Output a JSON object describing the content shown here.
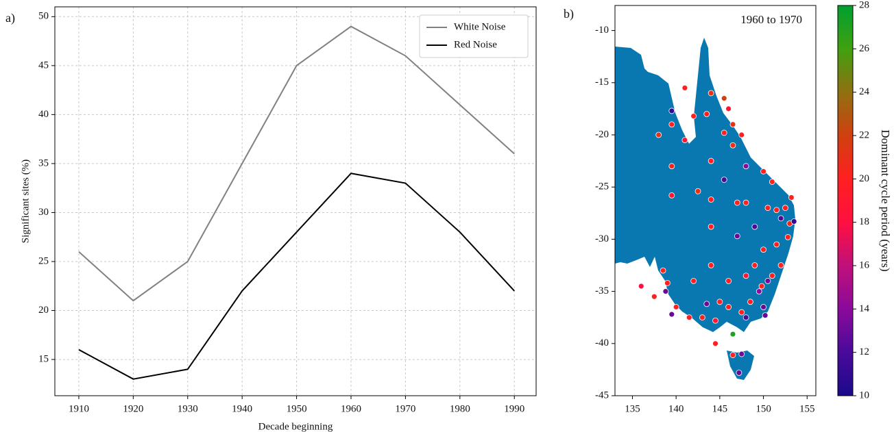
{
  "chart_data": [
    {
      "type": "line",
      "label": "a)",
      "x": [
        1910,
        1920,
        1930,
        1940,
        1950,
        1960,
        1970,
        1980,
        1990
      ],
      "series": [
        {
          "name": "White Noise",
          "color": "#808080",
          "values": [
            26,
            21,
            25,
            35,
            45,
            49,
            46,
            41,
            36
          ]
        },
        {
          "name": "Red Noise",
          "color": "#000000",
          "values": [
            16,
            13,
            14,
            22,
            28,
            34,
            33,
            28,
            22
          ]
        }
      ],
      "xlim": [
        1905.6,
        1994
      ],
      "ylim": [
        11.3,
        51
      ],
      "xticks": [
        1910,
        1920,
        1930,
        1940,
        1950,
        1960,
        1970,
        1980,
        1990
      ],
      "yticks": [
        15,
        20,
        25,
        30,
        35,
        40,
        45,
        50
      ],
      "xlabel": "Decade beginning",
      "ylabel": "Significant sites (%)",
      "grid": true,
      "legend": "upper right"
    },
    {
      "type": "scatter",
      "label": "b)",
      "annotation": "1960 to 1970",
      "x": [
        139.5,
        141,
        144,
        145.5,
        146,
        138,
        139.5,
        141,
        142,
        143.5,
        145.5,
        146.5,
        147.5,
        139.5,
        142.5,
        144,
        145.5,
        146.5,
        148,
        150,
        151,
        139.5,
        144,
        144,
        147,
        148,
        149,
        150.5,
        151.5,
        152,
        152.5,
        153,
        153.2,
        152.8,
        151.5,
        150,
        149,
        148,
        146,
        144,
        142,
        139,
        138.5,
        136,
        137.5,
        138.8,
        140,
        141.5,
        143,
        144.5,
        145,
        146,
        146.5,
        147.5,
        148.5,
        149.5,
        150,
        150.5,
        151,
        149.8,
        144.5,
        146.5,
        147.5,
        147.2,
        148,
        143.5,
        147,
        139.5,
        150.2,
        152,
        153.5
      ],
      "y": [
        -17.7,
        -15.5,
        -16,
        -16.5,
        -17.5,
        -20,
        -19,
        -20.5,
        -18.2,
        -18,
        -19.8,
        -19,
        -20,
        -23,
        -25.4,
        -22.5,
        -24.3,
        -21,
        -23,
        -23.5,
        -24.5,
        -25.8,
        -26.2,
        -28.8,
        -26.5,
        -26.5,
        -28.8,
        -27,
        -27.2,
        -28,
        -27,
        -28.5,
        -26,
        -29.8,
        -30.5,
        -31,
        -32.5,
        -33.5,
        -34,
        -32.5,
        -34,
        -34.2,
        -33,
        -34.5,
        -35.5,
        -35,
        -36.5,
        -37.5,
        -37.5,
        -37.8,
        -36,
        -36.5,
        -39.1,
        -37,
        -36,
        -35,
        -36.5,
        -34,
        -33.5,
        -34.5,
        -40,
        -41.1,
        -41,
        -42.8,
        -37.5,
        -36.2,
        -29.7,
        -37.2,
        -37.3,
        -32.5,
        -28.3
      ],
      "c": [
        11,
        20,
        21,
        22,
        19,
        21,
        20,
        19,
        20,
        20,
        20,
        21,
        20,
        20,
        21,
        20,
        12,
        21,
        14,
        20,
        20,
        19,
        20,
        20,
        20,
        20,
        12,
        20,
        20,
        12,
        20,
        20,
        20,
        20,
        20,
        20,
        20,
        19,
        20,
        20,
        20,
        20,
        20,
        18,
        20,
        13,
        20,
        20,
        20,
        19,
        20,
        20,
        27,
        20,
        20,
        14,
        13,
        13,
        20,
        20,
        20,
        20,
        13,
        13,
        12,
        13,
        13,
        13,
        13,
        20,
        11
      ],
      "xlim": [
        133,
        156
      ],
      "ylim": [
        -45,
        -7.6
      ],
      "xticks": [
        135,
        140,
        145,
        150,
        155
      ],
      "yticks": [
        -45,
        -40,
        -35,
        -30,
        -25,
        -20,
        -15,
        -10
      ],
      "clim": [
        10,
        28
      ],
      "cticks": [
        10,
        12,
        14,
        16,
        18,
        20,
        22,
        24,
        26,
        28
      ],
      "colorbar_label": "Dominant cycle period (years)",
      "colormap": [
        "#1a0a8a",
        "#4a0a9a",
        "#8a0a9a",
        "#c0107a",
        "#ff1040",
        "#ff2020",
        "#d04010",
        "#907010",
        "#40a010",
        "#00a030"
      ]
    }
  ]
}
